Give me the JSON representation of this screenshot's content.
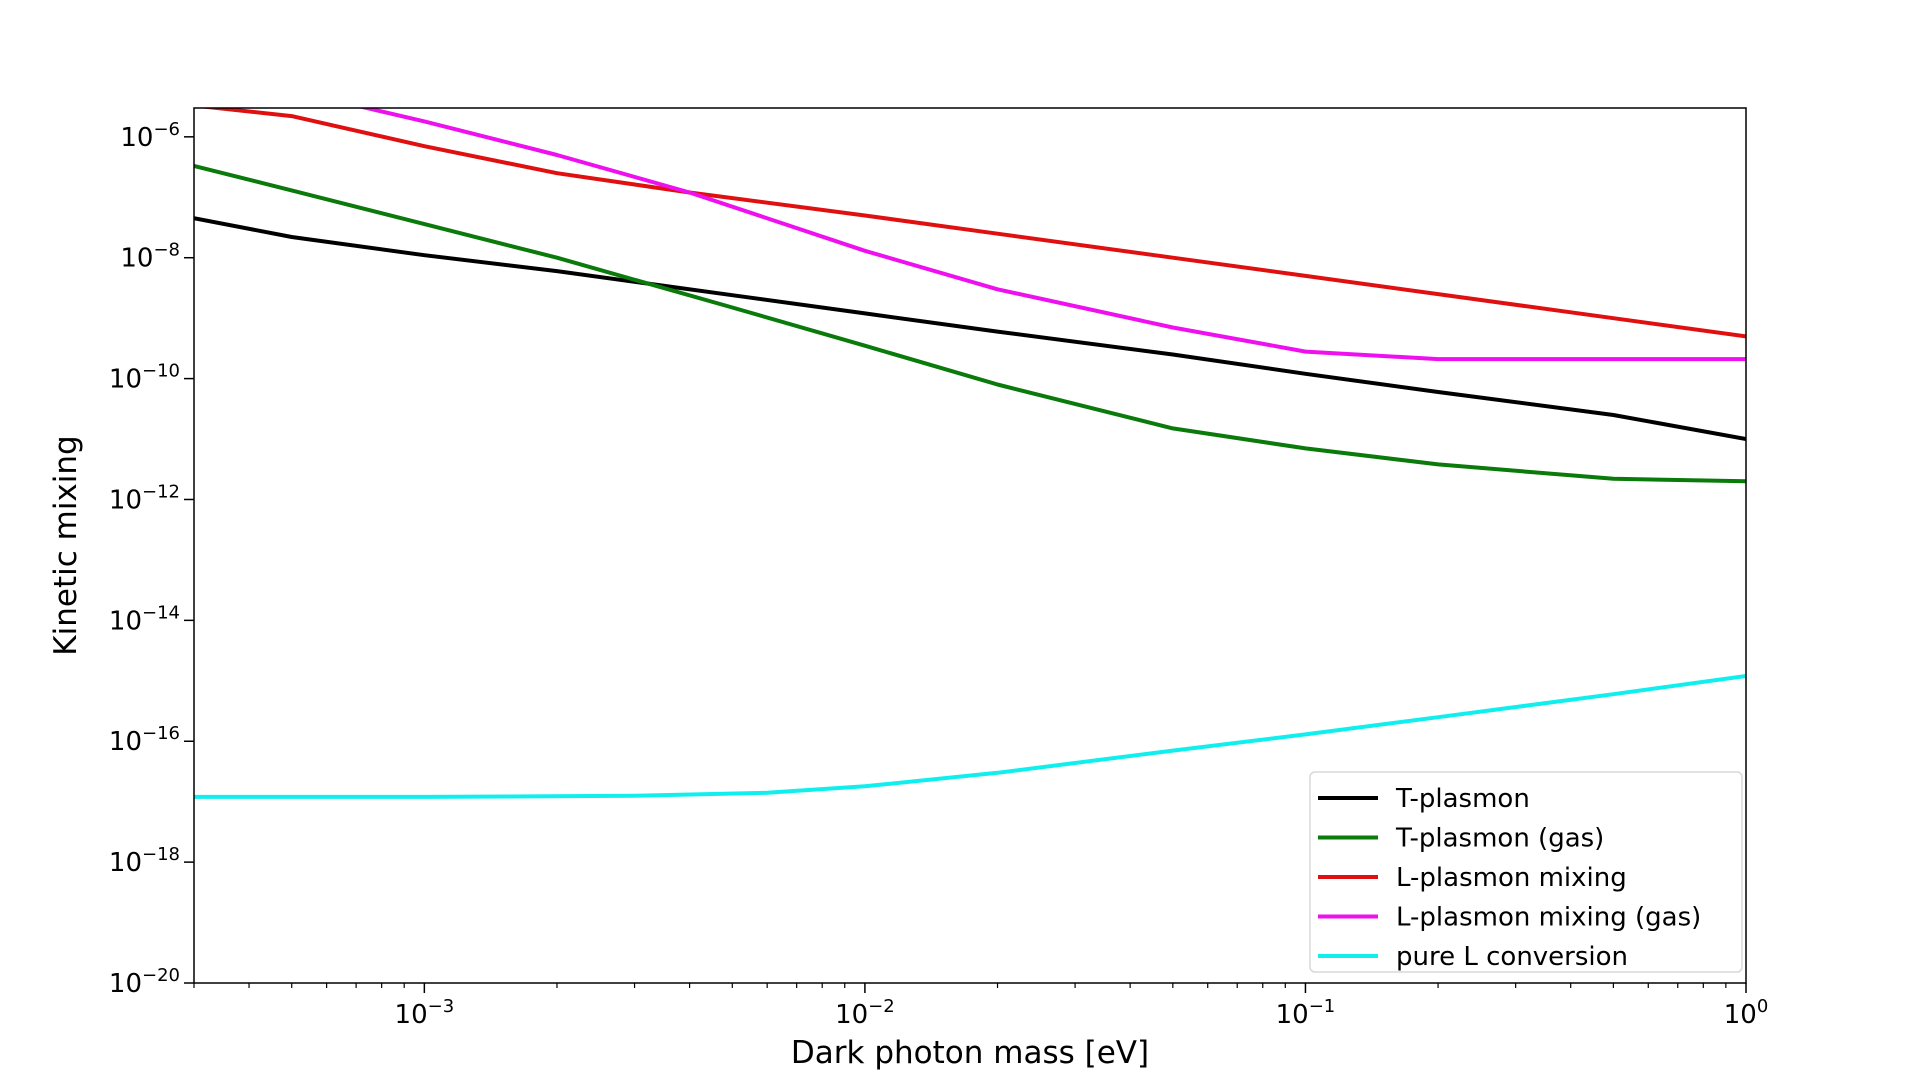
{
  "chart_data": {
    "type": "line",
    "xlabel": "Dark photon mass [eV]",
    "ylabel": "Kinetic mixing",
    "xscale": "log",
    "yscale": "log",
    "xlim": [
      0.0003,
      1
    ],
    "ylim": [
      1e-20,
      3e-06
    ],
    "grid": false,
    "legend_position": "lower-right",
    "x_ticks": [
      {
        "value": 0.001,
        "label": "10",
        "exp": "−3"
      },
      {
        "value": 0.01,
        "label": "10",
        "exp": "−2"
      },
      {
        "value": 0.1,
        "label": "10",
        "exp": "−1"
      },
      {
        "value": 1,
        "label": "10",
        "exp": "0"
      }
    ],
    "y_ticks": [
      {
        "value": 1e-06,
        "label": "10",
        "exp": "−6"
      },
      {
        "value": 1e-08,
        "label": "10",
        "exp": "−8"
      },
      {
        "value": 1e-10,
        "label": "10",
        "exp": "−10"
      },
      {
        "value": 1e-12,
        "label": "10",
        "exp": "−12"
      },
      {
        "value": 1e-14,
        "label": "10",
        "exp": "−14"
      },
      {
        "value": 1e-16,
        "label": "10",
        "exp": "−16"
      },
      {
        "value": 1e-18,
        "label": "10",
        "exp": "−18"
      },
      {
        "value": 1e-20,
        "label": "10",
        "exp": "−20"
      }
    ],
    "series": [
      {
        "name": "T-plasmon",
        "color": "#000000",
        "x": [
          0.0003,
          0.0005,
          0.001,
          0.002,
          0.005,
          0.01,
          0.02,
          0.05,
          0.1,
          0.2,
          0.5,
          1.0
        ],
        "y": [
          4.5e-08,
          2.2e-08,
          1.1e-08,
          6e-09,
          2.4e-09,
          1.2e-09,
          6e-10,
          2.5e-10,
          1.2e-10,
          6e-11,
          2.5e-11,
          1e-11
        ]
      },
      {
        "name": "T-plasmon (gas)",
        "color": "#0a7a0a",
        "x": [
          0.0003,
          0.0005,
          0.001,
          0.002,
          0.005,
          0.01,
          0.02,
          0.05,
          0.1,
          0.2,
          0.5,
          1.0
        ],
        "y": [
          3.3e-07,
          1.3e-07,
          3.6e-08,
          1e-08,
          1.5e-09,
          3.5e-10,
          8e-11,
          1.5e-11,
          7e-12,
          3.8e-12,
          2.2e-12,
          2e-12
        ]
      },
      {
        "name": "L-plasmon mixing",
        "color": "#e01010",
        "x": [
          0.0003,
          0.0005,
          0.001,
          0.002,
          0.004,
          0.01,
          0.02,
          0.05,
          0.1,
          0.2,
          0.5,
          1.0
        ],
        "y": [
          3.3e-06,
          2.2e-06,
          7e-07,
          2.5e-07,
          1.2e-07,
          5e-08,
          2.5e-08,
          1e-08,
          5e-09,
          2.5e-09,
          1e-09,
          5e-10
        ]
      },
      {
        "name": "L-plasmon mixing (gas)",
        "color": "#ee10ee",
        "x": [
          0.0007,
          0.001,
          0.002,
          0.004,
          0.01,
          0.02,
          0.05,
          0.1,
          0.2,
          0.5,
          1.0
        ],
        "y": [
          3.3e-06,
          1.8e-06,
          5e-07,
          1.2e-07,
          1.3e-08,
          3e-09,
          7e-10,
          2.8e-10,
          2.1e-10,
          2.1e-10,
          2.1e-10
        ]
      },
      {
        "name": "pure L conversion",
        "color": "#10eeee",
        "x": [
          0.0003,
          0.001,
          0.003,
          0.006,
          0.01,
          0.02,
          0.05,
          0.1,
          0.2,
          0.5,
          1.0
        ],
        "y": [
          1.2e-17,
          1.2e-17,
          1.25e-17,
          1.4e-17,
          1.8e-17,
          3e-17,
          7e-17,
          1.3e-16,
          2.5e-16,
          6e-16,
          1.2e-15
        ]
      }
    ]
  }
}
